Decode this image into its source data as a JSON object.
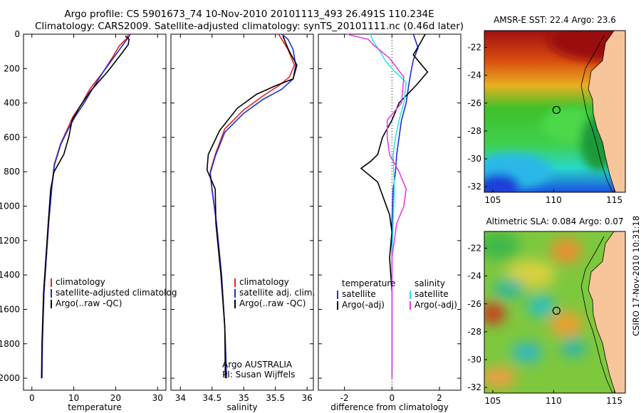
{
  "header": {
    "line1": "Argo profile: CS 5901673_74 10-Nov-2010 20101113_493 26.491S 110.234E",
    "line2": "Climatology: CARS2009. Satellite-adjusted climatology: synTS_20101111.nc (0.46d later)"
  },
  "colors": {
    "climatology": "#e8231b",
    "satellite": "#1b2fd6",
    "argo": "#000000",
    "sat_cyan": "#2ee6e6",
    "argo_magenta": "#e83ce8",
    "land": "#f6c59a"
  },
  "chart_data": [
    {
      "type": "line",
      "panel": "temperature",
      "xlabel": "temperature",
      "xticks": [
        0,
        10,
        20,
        30
      ],
      "xlim": [
        -2,
        32
      ],
      "ylim": [
        2070,
        0
      ],
      "yticks": [
        0,
        200,
        400,
        600,
        800,
        1000,
        1200,
        1400,
        1600,
        1800,
        2000
      ],
      "legend": [
        "climatology",
        "satellite-adjusted climatolog",
        "Argo(..raw -QC)"
      ],
      "series": [
        {
          "name": "climatology",
          "color": "#e8231b",
          "x": [
            23.0,
            22.8,
            20.8,
            19.6,
            17.0,
            13.8,
            12.0,
            9.8,
            8.3,
            6.8,
            5.3,
            4.8,
            4.0,
            2.9,
            2.5,
            2.4
          ],
          "y": [
            0,
            20,
            70,
            120,
            220,
            320,
            400,
            480,
            560,
            640,
            760,
            880,
            1100,
            1500,
            1800,
            2000
          ]
        },
        {
          "name": "satellite-adjusted climatolog",
          "color": "#1b2fd6",
          "x": [
            23.5,
            23.0,
            21.5,
            20.0,
            17.0,
            14.4,
            12.5,
            10.3,
            8.5,
            6.9,
            5.4,
            4.8,
            4.0,
            2.9,
            2.5,
            2.4
          ],
          "y": [
            0,
            20,
            70,
            120,
            220,
            320,
            400,
            480,
            560,
            640,
            760,
            880,
            1100,
            1500,
            1800,
            2000
          ]
        },
        {
          "name": "Argo(..raw -QC)",
          "color": "#000000",
          "x": [
            22.3,
            23.2,
            23.0,
            21.5,
            18.0,
            14.0,
            11.5,
            9.6,
            8.8,
            7.6,
            5.3,
            4.5,
            3.9,
            2.8,
            2.4,
            2.3
          ],
          "y": [
            10,
            30,
            60,
            110,
            220,
            330,
            420,
            500,
            600,
            700,
            800,
            900,
            1100,
            1500,
            1800,
            2000
          ]
        }
      ]
    },
    {
      "type": "line",
      "panel": "salinity",
      "xlabel": "salinity",
      "xticks": [
        34,
        34.5,
        35,
        35.5,
        36
      ],
      "xlim": [
        33.85,
        36.1
      ],
      "ylim": [
        2070,
        0
      ],
      "legend": [
        "climatology",
        "satellite adj. clim.",
        "Argo(..raw -QC)"
      ],
      "annotation": [
        "Argo AUSTRALIA",
        "PI: Susan Wijffels"
      ],
      "series": [
        {
          "name": "climatology",
          "color": "#e8231b",
          "x": [
            35.55,
            35.6,
            35.7,
            35.8,
            35.72,
            35.55,
            35.3,
            35.0,
            34.7,
            34.55,
            34.47,
            34.5,
            34.57,
            34.65,
            34.7,
            34.73
          ],
          "y": [
            0,
            30,
            90,
            180,
            250,
            300,
            360,
            440,
            550,
            700,
            800,
            900,
            1100,
            1400,
            1700,
            2000
          ]
        },
        {
          "name": "satellite adj. clim.",
          "color": "#1b2fd6",
          "x": [
            35.6,
            35.7,
            35.78,
            35.82,
            35.78,
            35.6,
            35.3,
            35.0,
            34.7,
            34.55,
            34.47,
            34.5,
            34.57,
            34.65,
            34.7,
            34.73
          ],
          "y": [
            0,
            30,
            90,
            180,
            260,
            320,
            380,
            460,
            570,
            710,
            810,
            910,
            1100,
            1400,
            1700,
            2000
          ]
        },
        {
          "name": "Argo(..raw -QC)",
          "color": "#000000",
          "x": [
            35.62,
            35.65,
            35.72,
            35.84,
            35.78,
            35.5,
            35.2,
            34.9,
            34.62,
            34.44,
            34.42,
            34.55,
            34.56,
            34.64,
            34.7,
            34.71
          ],
          "y": [
            10,
            40,
            100,
            180,
            260,
            300,
            350,
            430,
            560,
            700,
            790,
            900,
            1100,
            1400,
            1700,
            2000
          ]
        }
      ]
    },
    {
      "type": "line",
      "panel": "difference",
      "xlabel": "difference from climatology",
      "xticks": [
        -2,
        0,
        2
      ],
      "xlim": [
        -3.1,
        2.9
      ],
      "ylim": [
        2070,
        0
      ],
      "legend": [
        "temperature",
        "satellite",
        "Argo(-adj)",
        "salinity",
        "satellite",
        "Argo(-adj)"
      ],
      "series": [
        {
          "name": "satellite",
          "color": "#1b2fd6",
          "x": [
            0.9,
            1.0,
            1.1,
            0.9,
            0.8,
            0.7,
            0.6,
            0.4,
            0.3,
            0.2,
            0.15,
            0.05,
            0.0,
            0.0,
            0.0
          ],
          "y": [
            0,
            40,
            80,
            150,
            220,
            300,
            400,
            500,
            600,
            700,
            800,
            900,
            1100,
            1500,
            2000
          ]
        },
        {
          "name": "Argo(-adj)",
          "color": "#000000",
          "x": [
            1.4,
            1.2,
            0.9,
            1.5,
            1.0,
            0.3,
            0.0,
            -0.4,
            -0.6,
            -0.9,
            -1.3,
            -0.6,
            -0.1,
            0.0,
            -0.1,
            0.0,
            0.0
          ],
          "y": [
            0,
            50,
            120,
            220,
            300,
            400,
            500,
            600,
            700,
            740,
            780,
            860,
            1050,
            1150,
            1300,
            1500,
            2000
          ]
        },
        {
          "name": "satellite",
          "color": "#2ee6e6",
          "x": [
            -0.9,
            -0.8,
            -0.5,
            -0.3,
            0.0,
            0.6,
            0.5,
            0.3,
            0.15,
            0.05,
            0.1,
            0.05,
            0.0,
            0.0,
            0.0
          ],
          "y": [
            0,
            40,
            100,
            150,
            200,
            280,
            400,
            500,
            600,
            700,
            900,
            1100,
            1300,
            1600,
            2000
          ]
        },
        {
          "name": "Argo(-adj)",
          "color": "#e83ce8",
          "x": [
            -1.9,
            -1.0,
            -0.8,
            -0.1,
            0.5,
            0.4,
            -0.2,
            -0.2,
            -0.1,
            0.3,
            0.6,
            0.5,
            0.2,
            0.0,
            0.0
          ],
          "y": [
            0,
            30,
            60,
            140,
            250,
            400,
            500,
            600,
            700,
            800,
            900,
            1000,
            1100,
            1300,
            2000
          ]
        }
      ]
    },
    {
      "type": "heatmap",
      "panel": "sst_map",
      "title": "AMSR-E SST: 22.4 Argo: 23.6",
      "xticks": [
        105,
        110,
        115
      ],
      "yticks": [
        -22,
        -24,
        -26,
        -28,
        -30,
        -32
      ],
      "xlim": [
        104.3,
        115.9
      ],
      "ylim": [
        -32.4,
        -20.8
      ],
      "marker": {
        "lon": 110.234,
        "lat": -26.491
      }
    },
    {
      "type": "heatmap",
      "panel": "sla_map",
      "title": "Altimetric SLA: 0.084 Argo: 0.07",
      "xticks": [
        105,
        110,
        115
      ],
      "yticks": [
        -22,
        -24,
        -26,
        -28,
        -30,
        -32
      ],
      "xlim": [
        104.3,
        115.9
      ],
      "ylim": [
        -32.4,
        -20.8
      ],
      "marker": {
        "lon": 110.234,
        "lat": -26.491
      }
    }
  ],
  "footer": {
    "stamp": "CSIRO 17-Nov-2010 10:31:18"
  }
}
